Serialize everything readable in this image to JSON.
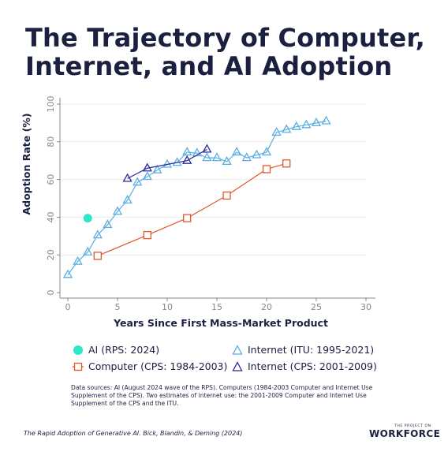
{
  "title": {
    "line1": "The Trajectory of Computer,",
    "line2": "Internet, and AI Adoption"
  },
  "chart_data": {
    "type": "line",
    "title": "The Trajectory of Computer, Internet, and AI Adoption",
    "xlabel": "Years Since First Mass-Market Product",
    "ylabel": "Adoption Rate (%)",
    "xlim": [
      0,
      30
    ],
    "ylim": [
      0,
      100
    ],
    "xticks": [
      0,
      5,
      10,
      15,
      20,
      25,
      30
    ],
    "yticks": [
      0,
      20,
      40,
      60,
      80,
      100
    ],
    "grid": true,
    "legend_position": "bottom",
    "series": [
      {
        "name": "AI (RPS: 2024)",
        "marker": "circle",
        "color": "#2ee6c8",
        "x": [
          2
        ],
        "y": [
          39.5
        ]
      },
      {
        "name": "Internet (ITU: 1995-2021)",
        "marker": "triangle-open",
        "color": "#5aaee0",
        "x": [
          0,
          1,
          2,
          3,
          4,
          5,
          6,
          7,
          8,
          9,
          10,
          11,
          12,
          13,
          14,
          15,
          16,
          17,
          18,
          19,
          20,
          21,
          22,
          23,
          24,
          25,
          26
        ],
        "y": [
          9.5,
          16.5,
          21.5,
          30.5,
          36,
          43,
          49,
          58.5,
          61.5,
          65,
          68,
          69,
          74.5,
          74,
          71.5,
          71.5,
          69.5,
          74.5,
          71.5,
          73,
          74.5,
          85,
          86.5,
          88,
          89,
          90,
          91
        ]
      },
      {
        "name": "Computer (CPS: 1984-2003)",
        "marker": "square-open",
        "color": "#e2582a",
        "x": [
          3,
          8,
          12,
          16,
          20,
          22
        ],
        "y": [
          19.5,
          30.5,
          39.5,
          51.5,
          65.5,
          68.5
        ]
      },
      {
        "name": "Internet (CPS: 2001-2009)",
        "marker": "triangle-open",
        "color": "#2a2a9a",
        "x": [
          6,
          8,
          12,
          14
        ],
        "y": [
          60.5,
          66,
          70,
          76
        ]
      }
    ]
  },
  "legend": {
    "ai": "AI (RPS: 2024)",
    "internet_itu": "Internet (ITU: 1995-2021)",
    "computer": "Computer (CPS: 1984-2003)",
    "internet_cps": "Internet (CPS: 2001-2009)"
  },
  "sources": "Data sources: AI (August 2024 wave of the RPS). Computers (1984-2003 Computer and Internet Use Supplement of the CPS). Two estimates of internet use: the 2001-2009 Computer and Internet Use Supplement of the CPS and the ITU.",
  "footer": "The Rapid Adoption of Generative AI. Bick, Blandin, & Deming (2024)",
  "logo": {
    "small": "THE PROJECT ON",
    "big": "WORKFORCE"
  },
  "colors": {
    "ai": "#2ee6c8",
    "internet_itu": "#5aaee0",
    "computer": "#e2582a",
    "internet_cps": "#2a2a9a",
    "title": "#1b2040"
  }
}
